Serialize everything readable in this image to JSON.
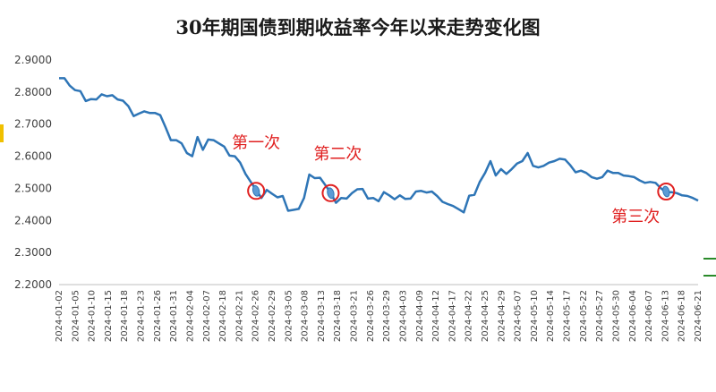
{
  "chart_data": {
    "type": "line",
    "title": "30年期国债到期收益率今年以来走势变化图",
    "xlabel": "",
    "ylabel": "",
    "ylim": [
      2.2,
      2.9
    ],
    "yticks": [
      "2.9000",
      "2.8000",
      "2.7000",
      "2.6000",
      "2.5000",
      "2.4000",
      "2.3000",
      "2.2000"
    ],
    "grid": false,
    "legend": "none",
    "x_tick_labels": [
      "2024-01-02",
      "2024-01-05",
      "2024-01-10",
      "2024-01-15",
      "2024-01-18",
      "2024-01-23",
      "2024-01-26",
      "2024-01-31",
      "2024-02-04",
      "2024-02-07",
      "2024-02-18",
      "2024-02-21",
      "2024-02-26",
      "2024-02-29",
      "2024-03-05",
      "2024-03-08",
      "2024-03-13",
      "2024-03-18",
      "2024-03-21",
      "2024-03-26",
      "2024-03-29",
      "2024-04-03",
      "2024-04-09",
      "2024-04-12",
      "2024-04-17",
      "2024-04-22",
      "2024-04-25",
      "2024-04-29",
      "2024-05-07",
      "2024-05-10",
      "2024-05-14",
      "2024-05-17",
      "2024-05-22",
      "2024-05-27",
      "2024-05-30",
      "2024-06-04",
      "2024-06-07",
      "2024-06-13",
      "2024-06-18",
      "2024-06-21"
    ],
    "series": [
      {
        "color": "#2e75b6",
        "values": [
          2.843,
          2.843,
          2.82,
          2.806,
          2.803,
          2.772,
          2.778,
          2.777,
          2.793,
          2.787,
          2.79,
          2.777,
          2.773,
          2.756,
          2.725,
          2.733,
          2.74,
          2.735,
          2.735,
          2.728,
          2.69,
          2.65,
          2.65,
          2.64,
          2.61,
          2.6,
          2.66,
          2.62,
          2.652,
          2.65,
          2.64,
          2.63,
          2.602,
          2.6,
          2.58,
          2.545,
          2.52,
          2.495,
          2.47,
          2.495,
          2.483,
          2.472,
          2.476,
          2.43,
          2.433,
          2.436,
          2.47,
          2.543,
          2.532,
          2.533,
          2.51,
          2.486,
          2.455,
          2.47,
          2.468,
          2.485,
          2.497,
          2.498,
          2.468,
          2.47,
          2.46,
          2.488,
          2.478,
          2.466,
          2.478,
          2.467,
          2.468,
          2.49,
          2.492,
          2.487,
          2.49,
          2.476,
          2.458,
          2.451,
          2.445,
          2.435,
          2.425,
          2.477,
          2.48,
          2.52,
          2.548,
          2.585,
          2.54,
          2.56,
          2.545,
          2.56,
          2.577,
          2.585,
          2.61,
          2.57,
          2.565,
          2.57,
          2.58,
          2.585,
          2.592,
          2.59,
          2.572,
          2.55,
          2.555,
          2.548,
          2.535,
          2.53,
          2.535,
          2.555,
          2.548,
          2.548,
          2.54,
          2.538,
          2.535,
          2.525,
          2.517,
          2.52,
          2.517,
          2.5,
          2.488,
          2.488,
          2.485,
          2.478,
          2.476,
          2.47,
          2.462
        ]
      }
    ],
    "annotations": [
      {
        "text": "第一次",
        "x_index": 37,
        "y": 2.492
      },
      {
        "text": "第二次",
        "x_index": 51,
        "y": 2.485
      },
      {
        "text": "第三次",
        "x_index": 114,
        "y": 2.49
      }
    ]
  }
}
